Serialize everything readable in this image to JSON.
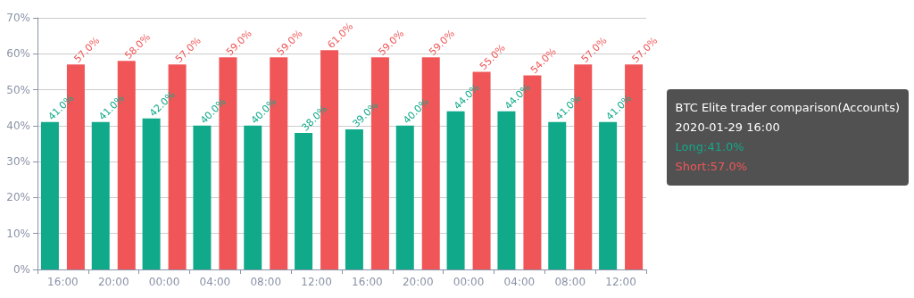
{
  "chart_data": {
    "type": "bar",
    "categories": [
      "16:00",
      "20:00",
      "00:00",
      "04:00",
      "08:00",
      "12:00",
      "16:00",
      "20:00",
      "00:00",
      "04:00",
      "08:00",
      "12:00"
    ],
    "series": [
      {
        "color": "#10a98a",
        "values": [
          41,
          41,
          42,
          40,
          40,
          38,
          39,
          40,
          44,
          44,
          41,
          41
        ],
        "value_labels": [
          "41.0%",
          "41.0%",
          "42.0%",
          "40.0%",
          "40.0%",
          "38.0%",
          "39.0%",
          "40.0%",
          "44.0%",
          "44.0%",
          "41.0%",
          "41.0%"
        ]
      },
      {
        "color": "#f05658",
        "values": [
          57,
          58,
          57,
          59,
          59,
          61,
          59,
          59,
          55,
          54,
          57,
          57
        ],
        "value_labels": [
          "57.0%",
          "58.0%",
          "57.0%",
          "59.0%",
          "59.0%",
          "61.0%",
          "59.0%",
          "59.0%",
          "55.0%",
          "54.0%",
          "57.0%",
          "57.0%"
        ]
      }
    ],
    "ylim": [
      0,
      70
    ],
    "yticks": [
      {
        "value": 0,
        "label": "0%"
      },
      {
        "value": 10,
        "label": "10%"
      },
      {
        "value": 20,
        "label": "20%"
      },
      {
        "value": 30,
        "label": "30%"
      },
      {
        "value": 40,
        "label": "40%"
      },
      {
        "value": 50,
        "label": "50%"
      },
      {
        "value": 60,
        "label": "60%"
      },
      {
        "value": 70,
        "label": "70%"
      }
    ],
    "grid": "y",
    "annotations": [
      "BTC Elite trader comparison(Accounts)",
      "2020-01-29 16:00",
      "Long:41.0%",
      "Short:57.0%"
    ]
  }
}
